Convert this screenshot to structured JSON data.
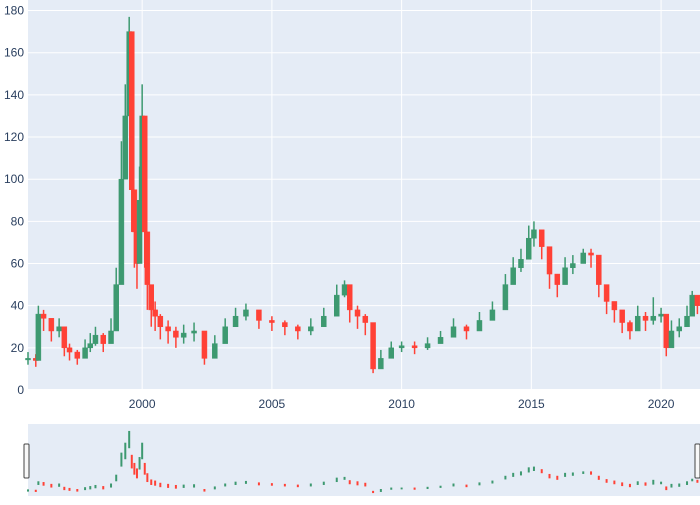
{
  "colors": {
    "plot_bg": "#e5ecf6",
    "grid": "#ffffff",
    "increasing": "#3d9970",
    "decreasing": "#ff4136",
    "tick_text": "#2a3f5f",
    "handle": "#444444"
  },
  "chart_data": {
    "type": "candlestick",
    "title": "",
    "xlabel": "",
    "ylabel": "",
    "x_range": [
      1995.6,
      2021.5
    ],
    "ylim": [
      0,
      185
    ],
    "x_ticks": [
      {
        "value": 2000,
        "label": "2000"
      },
      {
        "value": 2005,
        "label": "2005"
      },
      {
        "value": 2010,
        "label": "2010"
      },
      {
        "value": 2015,
        "label": "2015"
      },
      {
        "value": 2020,
        "label": "2020"
      }
    ],
    "y_ticks": [
      {
        "value": 0,
        "label": "0"
      },
      {
        "value": 20,
        "label": "20"
      },
      {
        "value": 40,
        "label": "40"
      },
      {
        "value": 60,
        "label": "60"
      },
      {
        "value": 80,
        "label": "80"
      },
      {
        "value": 100,
        "label": "100"
      },
      {
        "value": 120,
        "label": "120"
      },
      {
        "value": 140,
        "label": "140"
      },
      {
        "value": 160,
        "label": "160"
      },
      {
        "value": 180,
        "label": "180"
      }
    ],
    "grid": true,
    "legend": false,
    "rangeslider": true,
    "series": {
      "x": [
        1995.6,
        1995.9,
        1996.0,
        1996.2,
        1996.5,
        1996.8,
        1997.0,
        1997.2,
        1997.5,
        1997.8,
        1998.0,
        1998.2,
        1998.5,
        1998.8,
        1999.0,
        1999.2,
        1999.35,
        1999.5,
        1999.6,
        1999.7,
        1999.8,
        1999.9,
        2000.0,
        2000.1,
        2000.2,
        2000.35,
        2000.5,
        2000.7,
        2001.0,
        2001.3,
        2001.6,
        2002.0,
        2002.4,
        2002.8,
        2003.2,
        2003.6,
        2004.0,
        2004.5,
        2005.0,
        2005.5,
        2006.0,
        2006.5,
        2007.0,
        2007.5,
        2007.8,
        2008.0,
        2008.3,
        2008.6,
        2008.9,
        2009.2,
        2009.6,
        2010.0,
        2010.5,
        2011.0,
        2011.5,
        2012.0,
        2012.5,
        2013.0,
        2013.5,
        2014.0,
        2014.3,
        2014.6,
        2014.9,
        2015.1,
        2015.4,
        2015.7,
        2016.0,
        2016.3,
        2016.6,
        2017.0,
        2017.3,
        2017.6,
        2017.9,
        2018.2,
        2018.5,
        2018.8,
        2019.1,
        2019.4,
        2019.7,
        2020.0,
        2020.2,
        2020.4,
        2020.7,
        2021.0,
        2021.2,
        2021.4
      ],
      "close": [
        15,
        14,
        36,
        34,
        28,
        30,
        20,
        18,
        15,
        20,
        22,
        26,
        22,
        28,
        50,
        100,
        130,
        170,
        95,
        75,
        60,
        90,
        130,
        75,
        50,
        38,
        35,
        30,
        28,
        25,
        27,
        28,
        15,
        22,
        30,
        35,
        38,
        33,
        32,
        30,
        28,
        30,
        35,
        45,
        50,
        38,
        35,
        32,
        10,
        15,
        20,
        21,
        20,
        22,
        25,
        30,
        28,
        33,
        38,
        50,
        58,
        62,
        72,
        76,
        68,
        55,
        50,
        58,
        60,
        65,
        64,
        50,
        42,
        38,
        32,
        28,
        35,
        33,
        35,
        36,
        20,
        28,
        30,
        35,
        45,
        40
      ],
      "high": [
        18,
        17,
        40,
        38,
        33,
        34,
        25,
        22,
        19,
        24,
        27,
        30,
        27,
        34,
        58,
        118,
        145,
        177,
        112,
        90,
        75,
        106,
        145,
        90,
        62,
        45,
        42,
        36,
        33,
        30,
        31,
        32,
        19,
        26,
        34,
        39,
        41,
        37,
        35,
        33,
        31,
        34,
        39,
        50,
        52,
        43,
        40,
        36,
        14,
        19,
        23,
        23,
        23,
        25,
        28,
        34,
        31,
        37,
        42,
        55,
        63,
        67,
        78,
        80,
        73,
        60,
        55,
        63,
        64,
        67,
        67,
        55,
        46,
        42,
        37,
        33,
        40,
        37,
        44,
        39,
        26,
        33,
        34,
        40,
        47,
        44
      ],
      "low": [
        12,
        11,
        30,
        28,
        23,
        25,
        16,
        14,
        12,
        16,
        18,
        21,
        18,
        23,
        40,
        80,
        100,
        130,
        75,
        58,
        48,
        72,
        100,
        58,
        38,
        30,
        28,
        24,
        22,
        20,
        22,
        23,
        12,
        18,
        26,
        30,
        33,
        29,
        28,
        26,
        24,
        26,
        30,
        38,
        44,
        32,
        29,
        26,
        8,
        11,
        17,
        18,
        17,
        19,
        22,
        26,
        24,
        29,
        34,
        45,
        52,
        56,
        64,
        68,
        62,
        48,
        44,
        52,
        55,
        60,
        58,
        44,
        36,
        32,
        27,
        24,
        30,
        28,
        31,
        32,
        16,
        23,
        25,
        30,
        40,
        36
      ]
    }
  }
}
